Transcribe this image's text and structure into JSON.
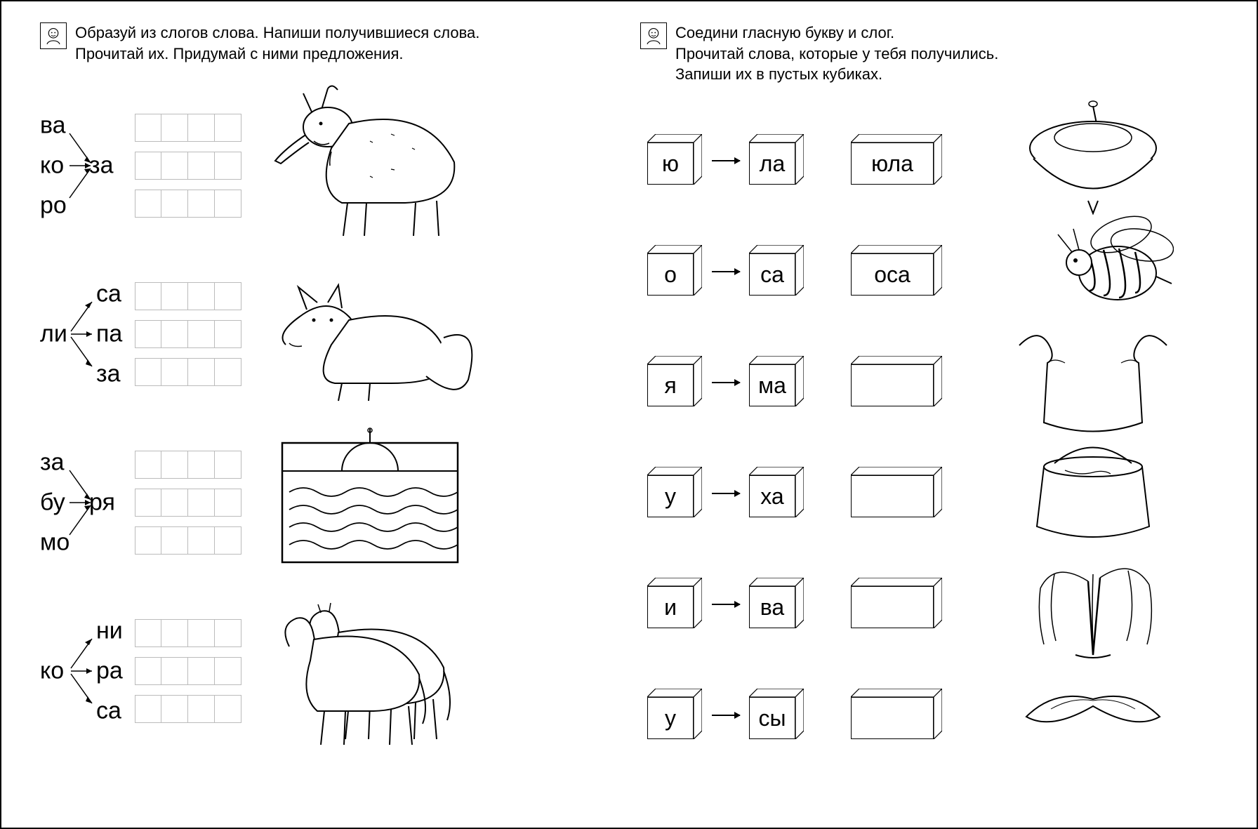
{
  "left": {
    "instruction": "Образуй из слогов слова. Напиши получившиеся слова.\nПрочитай их. Придумай с ними предложения.",
    "rows": [
      {
        "prefixes": [
          "ва",
          "ко",
          "ро"
        ],
        "target": "за",
        "grids": 3,
        "illus": "goat"
      },
      {
        "prefixes": [
          "са",
          "па",
          "за"
        ],
        "target_prefix": "ли",
        "grids": 3,
        "illus": "fox",
        "reverse": true
      },
      {
        "prefixes": [
          "за",
          "бу",
          "мо"
        ],
        "target": "ря",
        "grids": 3,
        "illus": "sea"
      },
      {
        "prefixes": [
          "ни",
          "ра",
          "са"
        ],
        "target_prefix": "ко",
        "grids": 3,
        "illus": "horses",
        "reverse": true
      }
    ]
  },
  "right": {
    "instruction": "Соедини гласную букву и слог.\nПрочитай слова, которые у тебя получились.\nЗапиши их в пустых кубиках.",
    "rows": [
      {
        "a": "ю",
        "b": "ла",
        "ans": "юла",
        "illus": "top"
      },
      {
        "a": "о",
        "b": "са",
        "ans": "оса",
        "illus": "wasp"
      },
      {
        "a": "я",
        "b": "ма",
        "ans": "",
        "illus": "pit"
      },
      {
        "a": "у",
        "b": "ха",
        "ans": "",
        "illus": "pot"
      },
      {
        "a": "и",
        "b": "ва",
        "ans": "",
        "illus": "willow"
      },
      {
        "a": "у",
        "b": "сы",
        "ans": "",
        "illus": "mustache"
      }
    ]
  }
}
